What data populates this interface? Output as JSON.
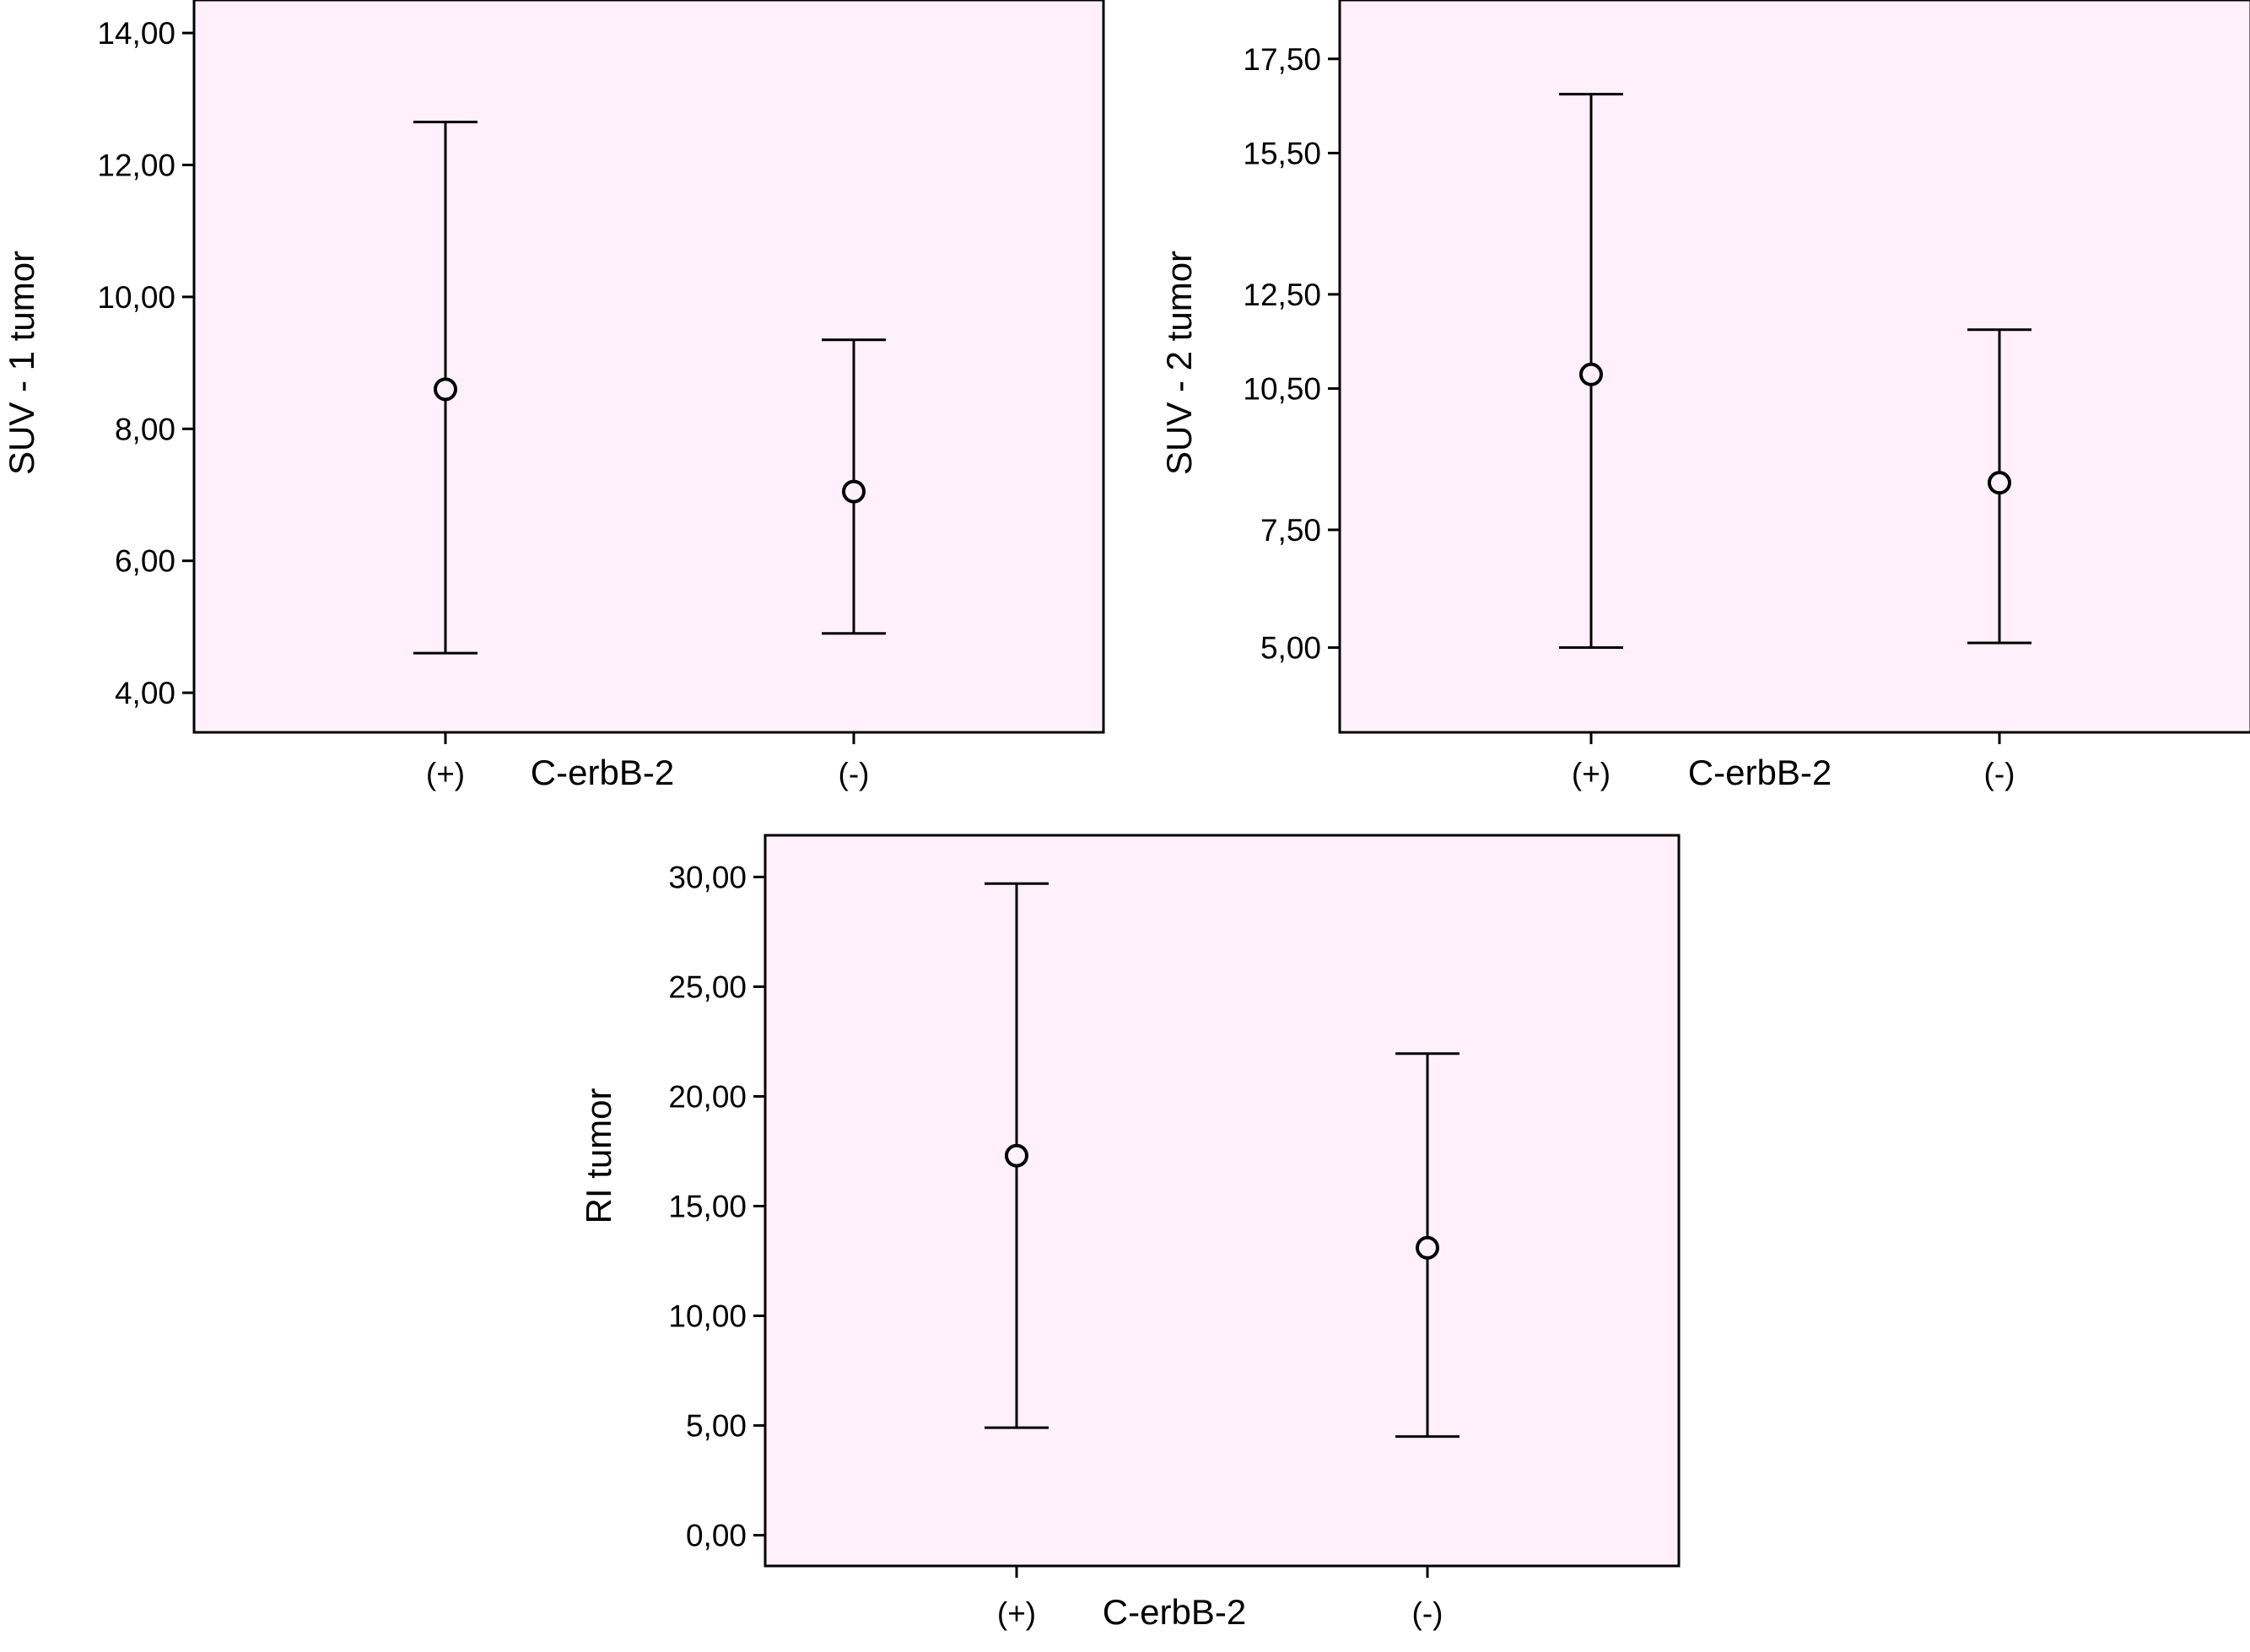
{
  "chart_data": [
    {
      "type": "errorbar",
      "xlabel": "C-erbB-2",
      "ylabel": "SUV - 1 tumor",
      "categories": [
        "(+)",
        "(-)"
      ],
      "ylim": [
        3.4,
        14.5
      ],
      "yticks": [
        4,
        6,
        8,
        10,
        12,
        14
      ],
      "ytick_labels": [
        "4,00",
        "6,00",
        "8,00",
        "10,00",
        "12,00",
        "14,00"
      ],
      "points": [
        {
          "category": "(+)",
          "mean": 8.6,
          "lower": 4.6,
          "upper": 12.65
        },
        {
          "category": "(-)",
          "mean": 7.05,
          "lower": 4.9,
          "upper": 9.35
        }
      ]
    },
    {
      "type": "errorbar",
      "xlabel": "C-erbB-2",
      "ylabel": "SUV - 2 tumor",
      "categories": [
        "(+)",
        "(-)"
      ],
      "ylim": [
        3.2,
        18.75
      ],
      "yticks": [
        5,
        7.5,
        10.5,
        12.5,
        15.5,
        17.5
      ],
      "ytick_labels": [
        "5,00",
        "7,50",
        "10,50",
        "12,50",
        "15,50",
        "17,50"
      ],
      "points": [
        {
          "category": "(+)",
          "mean": 10.8,
          "lower": 5.0,
          "upper": 16.75
        },
        {
          "category": "(-)",
          "mean": 8.5,
          "lower": 5.1,
          "upper": 11.75
        }
      ]
    },
    {
      "type": "errorbar",
      "xlabel": "C-erbB-2",
      "ylabel": "RI tumor",
      "categories": [
        "(+)",
        "(-)"
      ],
      "ylim": [
        -1.4,
        31.9
      ],
      "yticks": [
        0,
        5,
        10,
        15,
        20,
        25,
        30
      ],
      "ytick_labels": [
        "0,00",
        "5,00",
        "10,00",
        "15,00",
        "20,00",
        "25,00",
        "30,00"
      ],
      "points": [
        {
          "category": "(+)",
          "mean": 17.3,
          "lower": 4.9,
          "upper": 29.7
        },
        {
          "category": "(-)",
          "mean": 13.1,
          "lower": 4.5,
          "upper": 21.95
        }
      ]
    }
  ],
  "colors": {
    "plot_background": "#fff0fb",
    "line": "#000000"
  }
}
